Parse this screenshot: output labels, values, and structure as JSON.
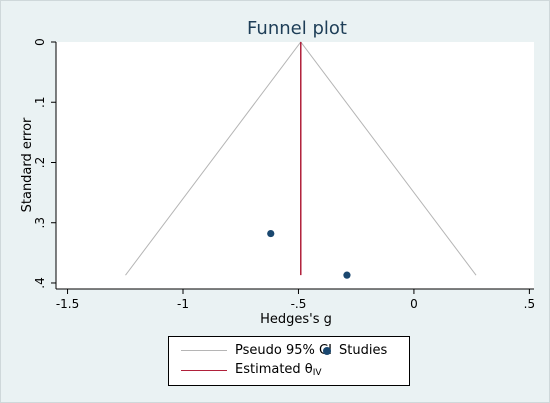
{
  "chart_data": {
    "type": "scatter",
    "title": "Funnel plot",
    "xlabel": "Hedges's g",
    "ylabel": "Standard error",
    "xlim": [
      -1.55,
      0.52
    ],
    "ylim": [
      0,
      0.41
    ],
    "y_reversed": true,
    "grid": false,
    "legend_position": "bottom",
    "xticks": [
      -1.5,
      -1,
      -0.5,
      0,
      0.5
    ],
    "xtick_labels": [
      "-1.5",
      "-1",
      "-.5",
      "0",
      ".5"
    ],
    "yticks": [
      0,
      0.1,
      0.2,
      0.3,
      0.4
    ],
    "ytick_labels": [
      "0",
      ".1",
      ".2",
      ".3",
      ".4"
    ],
    "series": [
      {
        "name": "Studies",
        "type": "scatter",
        "color": "#1a476f",
        "points": [
          {
            "x": -0.62,
            "y": 0.318
          },
          {
            "x": -0.29,
            "y": 0.387
          }
        ]
      },
      {
        "name": "Pseudo 95% CI",
        "type": "line",
        "color": "#b5b5b5",
        "segments": [
          [
            {
              "x": -1.249,
              "y": 0.387
            },
            {
              "x": -0.49,
              "y": 0
            },
            {
              "x": 0.269,
              "y": 0.387
            }
          ]
        ]
      },
      {
        "name": "Estimated θIV",
        "type": "line",
        "color": "#b0203a",
        "segments": [
          [
            {
              "x": -0.49,
              "y": 0
            },
            {
              "x": -0.49,
              "y": 0.387
            }
          ]
        ]
      }
    ]
  },
  "legend": {
    "ci_label": "Pseudo 95% CI",
    "studies_label": "Studies",
    "estimate_label_main": "Estimated θ",
    "estimate_label_sub": "IV",
    "ci_color": "#b5b5b5",
    "studies_color": "#1a476f",
    "estimate_color": "#b0203a"
  }
}
